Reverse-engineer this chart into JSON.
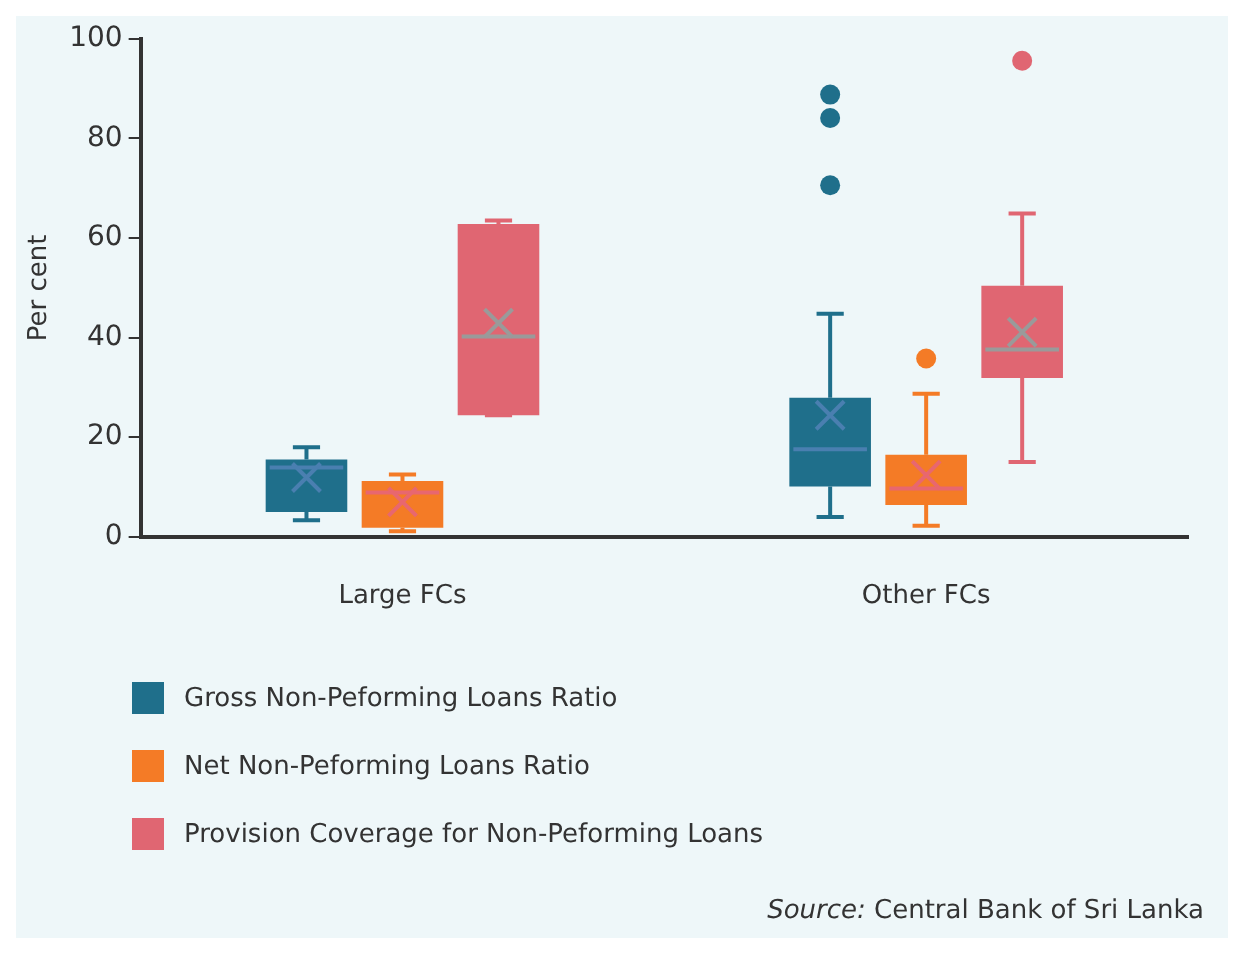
{
  "chart_data": {
    "type": "box",
    "ylabel": "Per cent",
    "categories": [
      "Large FCs",
      "Other FCs"
    ],
    "ylim": [
      0,
      100
    ],
    "yticks": [
      0,
      20,
      40,
      60,
      80,
      100
    ],
    "grid": false,
    "legend": "bottom",
    "marker": "cross",
    "series": [
      {
        "name": "Gross Non-Peforming Loans Ratio",
        "color": "#1f6f8b",
        "boxes": [
          {
            "low": 3.3,
            "q1": 5,
            "median": 13.9,
            "q3": 15.5,
            "high": 18,
            "mean": 11.9
          },
          {
            "low": 4,
            "q1": 10.1,
            "median": 17.6,
            "q3": 27.9,
            "high": 44.8,
            "mean": 24.4,
            "outliers": [
              88.8,
              84.1,
              70.6
            ]
          }
        ]
      },
      {
        "name": "Net Non-Peforming Loans Ratio",
        "color": "#f47b26",
        "boxes": [
          {
            "low": 1.1,
            "q1": 1.8,
            "median": 8.9,
            "q3": 11.2,
            "high": 12.5,
            "mean": 7
          },
          {
            "low": 2.2,
            "q1": 6.4,
            "median": 9.7,
            "q3": 16.5,
            "high": 28.7,
            "mean": 12.4,
            "outliers": [
              35.8
            ]
          }
        ]
      },
      {
        "name": "Provision Coverage for Non-Peforming Loans",
        "color": "#e06672",
        "boxes": [
          {
            "low": 24.4,
            "q1": 24.4,
            "median": 40.2,
            "q3": 62.8,
            "high": 63.5,
            "mean": 42.9
          },
          {
            "low": 15,
            "q1": 31.9,
            "median": 37.6,
            "q3": 50.4,
            "high": 64.9,
            "mean": 41.1,
            "outliers": [
              95.6
            ]
          }
        ]
      }
    ],
    "annotations": [
      "Source: Central Bank of Sri Lanka"
    ]
  }
}
